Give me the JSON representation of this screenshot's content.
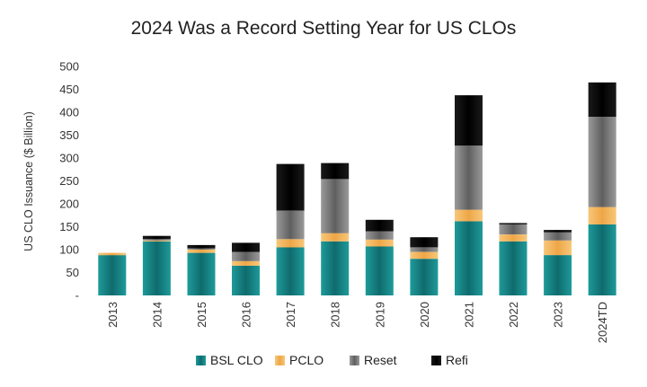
{
  "chart_data": {
    "type": "bar",
    "stacked": true,
    "title": "2024 Was a Record Setting Year for US CLOs",
    "xlabel": "",
    "ylabel": "US CLO Issuance ($ Billion)",
    "ylim": [
      0,
      500
    ],
    "yticks": [
      0,
      50,
      100,
      150,
      200,
      250,
      300,
      350,
      400,
      450,
      500
    ],
    "ytick_labels": [
      "-",
      "50",
      "100",
      "150",
      "200",
      "250",
      "300",
      "350",
      "400",
      "450",
      "500"
    ],
    "grid": false,
    "legend_position": "bottom",
    "categories": [
      "2013",
      "2014",
      "2015",
      "2016",
      "2017",
      "2018",
      "2019",
      "2020",
      "2021",
      "2022",
      "2023",
      "2024TD"
    ],
    "series": [
      {
        "name": "BSL CLO",
        "color": "#1a7f80",
        "values": [
          88,
          118,
          93,
          65,
          105,
          118,
          107,
          80,
          162,
          118,
          88,
          155
        ]
      },
      {
        "name": "PCLO",
        "color": "#f3b55d",
        "values": [
          5,
          2,
          7,
          10,
          18,
          18,
          15,
          15,
          25,
          15,
          32,
          38
        ]
      },
      {
        "name": "Reset",
        "color": "#7a7a7a",
        "values": [
          0,
          3,
          3,
          20,
          62,
          118,
          18,
          10,
          140,
          22,
          18,
          197
        ]
      },
      {
        "name": "Refi",
        "color": "#0a0a0a",
        "values": [
          0,
          7,
          7,
          20,
          102,
          35,
          25,
          22,
          110,
          3,
          5,
          75
        ]
      }
    ]
  }
}
